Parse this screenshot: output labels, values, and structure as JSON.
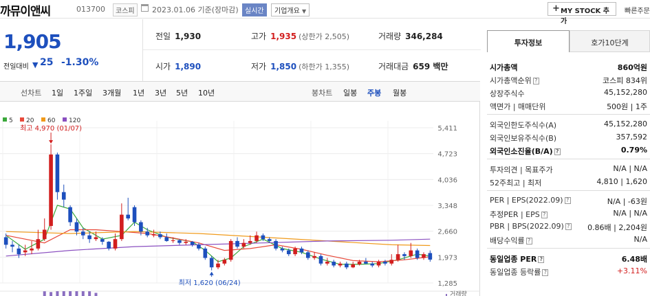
{
  "header": {
    "name": "까뮤이앤씨",
    "code": "013700",
    "market": "코스피",
    "date_text": "2023.01.06 기준(장마감)",
    "realtime": "실시간",
    "overview": "기업개요",
    "mystock": "MY STOCK 추가",
    "quick": "빠른주문"
  },
  "price": {
    "current": "1,905",
    "change_label": "전일대비",
    "direction": "down",
    "change": "25",
    "pct": "-1.30%"
  },
  "quote": {
    "prev_label": "전일",
    "prev": "1,930",
    "high_label": "고가",
    "high": "1,935",
    "upper_limit": "(상한가 2,505)",
    "volume_label": "거래량",
    "volume": "346,284",
    "open_label": "시가",
    "open": "1,890",
    "low_label": "저가",
    "low": "1,850",
    "lower_limit": "(하한가 1,355)",
    "amount_label": "거래대금",
    "amount": "659 백만"
  },
  "period_bar": {
    "line_chart": "선차트",
    "periods": [
      "1일",
      "1주일",
      "3개월",
      "1년",
      "3년",
      "5년",
      "10년"
    ],
    "candle_chart": "봉차트",
    "candle_types": [
      "일봉",
      "주봉",
      "월봉"
    ],
    "active_candle": "주봉"
  },
  "chart_labels": {
    "high_note": "최고 4,970 (01/07)",
    "low_note": "최저 1,620 (06/24)",
    "volume": "거래량"
  },
  "colors": {
    "accent": "#1d4fbd",
    "up": "#d21e1e",
    "down": "#1d4fbd",
    "ma5": "#3aa83a",
    "ma20": "#e8493a",
    "ma60": "#f09a1a",
    "ma120": "#8a4fc0"
  },
  "chart_data": {
    "type": "candlestick",
    "title": "",
    "legend": [
      "5",
      "20",
      "60",
      "120"
    ],
    "y_ticks": [
      "5,411",
      "4,723",
      "4,036",
      "3,348",
      "2,660",
      "1,973",
      "1,285"
    ],
    "ylim": [
      1285,
      5411
    ],
    "annotations": [
      {
        "text": "최고 4,970 (01/07)",
        "value": 4970
      },
      {
        "text": "최저 1,620 (06/24)",
        "value": 1620
      }
    ],
    "candles": [
      {
        "o": 2500,
        "c": 2300,
        "h": 2600,
        "l": 2200
      },
      {
        "o": 2300,
        "c": 2250,
        "h": 2400,
        "l": 2100
      },
      {
        "o": 2200,
        "c": 2050,
        "h": 2300,
        "l": 1950
      },
      {
        "o": 2100,
        "c": 2150,
        "h": 2300,
        "l": 2000
      },
      {
        "o": 2150,
        "c": 2200,
        "h": 2400,
        "l": 2050
      },
      {
        "o": 2200,
        "c": 2450,
        "h": 2700,
        "l": 2150
      },
      {
        "o": 2450,
        "c": 2700,
        "h": 3000,
        "l": 2400
      },
      {
        "o": 2800,
        "c": 4700,
        "h": 4970,
        "l": 2700
      },
      {
        "o": 4700,
        "c": 3700,
        "h": 4750,
        "l": 3500
      },
      {
        "o": 3700,
        "c": 3500,
        "h": 3900,
        "l": 3300
      },
      {
        "o": 3300,
        "c": 2900,
        "h": 3350,
        "l": 2800
      },
      {
        "o": 2900,
        "c": 2650,
        "h": 3000,
        "l": 2550
      },
      {
        "o": 2650,
        "c": 2550,
        "h": 2750,
        "l": 2450
      },
      {
        "o": 2550,
        "c": 2450,
        "h": 2650,
        "l": 2350
      },
      {
        "o": 2450,
        "c": 2500,
        "h": 2650,
        "l": 2400
      },
      {
        "o": 2450,
        "c": 2380,
        "h": 2500,
        "l": 2300
      },
      {
        "o": 2380,
        "c": 2200,
        "h": 2400,
        "l": 2150
      },
      {
        "o": 2200,
        "c": 2450,
        "h": 2600,
        "l": 2150
      },
      {
        "o": 2450,
        "c": 3100,
        "h": 3400,
        "l": 2400
      },
      {
        "o": 3100,
        "c": 3000,
        "h": 3550,
        "l": 2950
      },
      {
        "o": 3300,
        "c": 2900,
        "h": 3350,
        "l": 2800
      },
      {
        "o": 2900,
        "c": 2650,
        "h": 2950,
        "l": 2550
      },
      {
        "o": 2650,
        "c": 2550,
        "h": 2750,
        "l": 2500
      },
      {
        "o": 2550,
        "c": 2580,
        "h": 2700,
        "l": 2500
      },
      {
        "o": 2580,
        "c": 2500,
        "h": 2650,
        "l": 2450
      },
      {
        "o": 2500,
        "c": 2400,
        "h": 2600,
        "l": 2380
      },
      {
        "o": 2400,
        "c": 2420,
        "h": 2500,
        "l": 2350
      },
      {
        "o": 2420,
        "c": 2350,
        "h": 2450,
        "l": 2300
      },
      {
        "o": 2350,
        "c": 2380,
        "h": 2450,
        "l": 2300
      },
      {
        "o": 2380,
        "c": 2300,
        "h": 2400,
        "l": 2250
      },
      {
        "o": 2300,
        "c": 2200,
        "h": 2350,
        "l": 2150
      },
      {
        "o": 2200,
        "c": 1950,
        "h": 2250,
        "l": 1900
      },
      {
        "o": 1950,
        "c": 1700,
        "h": 2000,
        "l": 1620
      },
      {
        "o": 1700,
        "c": 1800,
        "h": 1900,
        "l": 1650
      },
      {
        "o": 1800,
        "c": 1900,
        "h": 1950,
        "l": 1750
      },
      {
        "o": 1900,
        "c": 2400,
        "h": 2450,
        "l": 1850
      },
      {
        "o": 2400,
        "c": 2250,
        "h": 2500,
        "l": 2200
      },
      {
        "o": 2250,
        "c": 2350,
        "h": 2450,
        "l": 2200
      },
      {
        "o": 2350,
        "c": 2400,
        "h": 2550,
        "l": 2300
      },
      {
        "o": 2400,
        "c": 2550,
        "h": 2650,
        "l": 2350
      },
      {
        "o": 2550,
        "c": 2450,
        "h": 2600,
        "l": 2400
      },
      {
        "o": 2450,
        "c": 2400,
        "h": 2500,
        "l": 2350
      },
      {
        "o": 2400,
        "c": 2200,
        "h": 2450,
        "l": 2150
      },
      {
        "o": 2200,
        "c": 2150,
        "h": 2250,
        "l": 2100
      },
      {
        "o": 2150,
        "c": 2050,
        "h": 2200,
        "l": 2000
      },
      {
        "o": 2050,
        "c": 2200,
        "h": 2250,
        "l": 2000
      },
      {
        "o": 2200,
        "c": 2100,
        "h": 2250,
        "l": 2050
      },
      {
        "o": 2100,
        "c": 1950,
        "h": 2150,
        "l": 1900
      },
      {
        "o": 1950,
        "c": 2000,
        "h": 2100,
        "l": 1900
      },
      {
        "o": 2000,
        "c": 1800,
        "h": 2050,
        "l": 1750
      },
      {
        "o": 1800,
        "c": 1850,
        "h": 1950,
        "l": 1750
      },
      {
        "o": 1850,
        "c": 1750,
        "h": 1900,
        "l": 1700
      },
      {
        "o": 1750,
        "c": 1800,
        "h": 1850,
        "l": 1700
      },
      {
        "o": 1800,
        "c": 1700,
        "h": 1850,
        "l": 1650
      },
      {
        "o": 1700,
        "c": 1780,
        "h": 1850,
        "l": 1680
      },
      {
        "o": 1780,
        "c": 1850,
        "h": 1900,
        "l": 1750
      },
      {
        "o": 1850,
        "c": 1800,
        "h": 1950,
        "l": 1780
      },
      {
        "o": 1800,
        "c": 1750,
        "h": 1850,
        "l": 1700
      },
      {
        "o": 1750,
        "c": 1850,
        "h": 1900,
        "l": 1700
      },
      {
        "o": 1850,
        "c": 1800,
        "h": 1900,
        "l": 1750
      },
      {
        "o": 1800,
        "c": 1900,
        "h": 2050,
        "l": 1750
      },
      {
        "o": 1900,
        "c": 2050,
        "h": 2300,
        "l": 1850
      },
      {
        "o": 2050,
        "c": 2000,
        "h": 2100,
        "l": 1900
      },
      {
        "o": 2000,
        "c": 2150,
        "h": 2350,
        "l": 1950
      },
      {
        "o": 2150,
        "c": 1950,
        "h": 2200,
        "l": 1900
      },
      {
        "o": 1950,
        "c": 2050,
        "h": 2100,
        "l": 1900
      },
      {
        "o": 2080,
        "c": 1905,
        "h": 2150,
        "l": 1850
      }
    ],
    "ma": [
      {
        "name": "5",
        "color": "#3aa83a",
        "values": [
          [
            0,
            2550
          ],
          [
            3,
            2180
          ],
          [
            6,
            2450
          ],
          [
            8,
            3350
          ],
          [
            10,
            3250
          ],
          [
            12,
            2750
          ],
          [
            15,
            2450
          ],
          [
            18,
            2550
          ],
          [
            20,
            2900
          ],
          [
            22,
            2700
          ],
          [
            25,
            2500
          ],
          [
            29,
            2380
          ],
          [
            31,
            2150
          ],
          [
            33,
            1850
          ],
          [
            35,
            1950
          ],
          [
            37,
            2250
          ],
          [
            40,
            2450
          ],
          [
            43,
            2200
          ],
          [
            46,
            2100
          ],
          [
            49,
            1920
          ],
          [
            52,
            1780
          ],
          [
            55,
            1780
          ],
          [
            58,
            1800
          ],
          [
            61,
            1900
          ],
          [
            64,
            2050
          ],
          [
            66,
            2000
          ]
        ]
      },
      {
        "name": "20",
        "color": "#e8493a",
        "values": [
          [
            0,
            2550
          ],
          [
            6,
            2350
          ],
          [
            10,
            2700
          ],
          [
            14,
            2700
          ],
          [
            18,
            2650
          ],
          [
            22,
            2600
          ],
          [
            26,
            2480
          ],
          [
            30,
            2350
          ],
          [
            34,
            2150
          ],
          [
            38,
            2200
          ],
          [
            42,
            2300
          ],
          [
            46,
            2180
          ],
          [
            50,
            2020
          ],
          [
            54,
            1880
          ],
          [
            58,
            1850
          ],
          [
            62,
            1900
          ],
          [
            66,
            1980
          ]
        ]
      },
      {
        "name": "60",
        "color": "#f09a1a",
        "values": [
          [
            0,
            2650
          ],
          [
            10,
            2600
          ],
          [
            20,
            2650
          ],
          [
            30,
            2600
          ],
          [
            40,
            2500
          ],
          [
            50,
            2400
          ],
          [
            60,
            2300
          ],
          [
            66,
            2280
          ]
        ]
      },
      {
        "name": "120",
        "color": "#8a4fc0",
        "values": [
          [
            0,
            2000
          ],
          [
            10,
            2150
          ],
          [
            20,
            2250
          ],
          [
            30,
            2300
          ],
          [
            40,
            2350
          ],
          [
            50,
            2400
          ],
          [
            60,
            2420
          ],
          [
            66,
            2450
          ]
        ]
      }
    ],
    "volume": [
      60000,
      50000,
      280000,
      210000,
      120000,
      80000,
      140000,
      60000,
      40000
    ]
  },
  "side": {
    "tab_invest": "투자정보",
    "tab_hoga": "호가10단계",
    "g1": [
      {
        "l": "시가총액",
        "r": "860억원",
        "bold": true
      },
      {
        "l": "시가총액순위",
        "r": "코스피 834위",
        "help": true
      },
      {
        "l": "상장주식수",
        "r": "45,152,280"
      },
      {
        "l": "액면가 | 매매단위",
        "r": "500원 | 1주"
      }
    ],
    "g2": [
      {
        "l": "외국인한도주식수(A)",
        "r": "45,152,280"
      },
      {
        "l": "외국인보유주식수(B)",
        "r": "357,592"
      },
      {
        "l": "외국인소진율(B/A)",
        "r": "0.79%",
        "bold": true,
        "help": true
      }
    ],
    "g3": [
      {
        "l": "투자의견 | 목표주가",
        "r": "N/A | N/A"
      },
      {
        "l": "52주최고 | 최저",
        "r": "4,810 | 1,620"
      }
    ],
    "g4": [
      {
        "l": "PER | EPS(2022.09)",
        "r": "N/A | -63원",
        "help": true
      },
      {
        "l": "추정PER | EPS",
        "r": "N/A | N/A",
        "help": true
      },
      {
        "l": "PBR | BPS(2022.09)",
        "r": "0.86배 | 2,204원",
        "help": true
      },
      {
        "l": "배당수익률",
        "r": "N/A",
        "help": true
      }
    ],
    "g5": [
      {
        "l": "동일업종 PER",
        "r": "6.48배",
        "bold": true,
        "help": true
      },
      {
        "l": "동일업종 등락률",
        "r": "+3.11%",
        "help": true,
        "up": true
      }
    ]
  }
}
